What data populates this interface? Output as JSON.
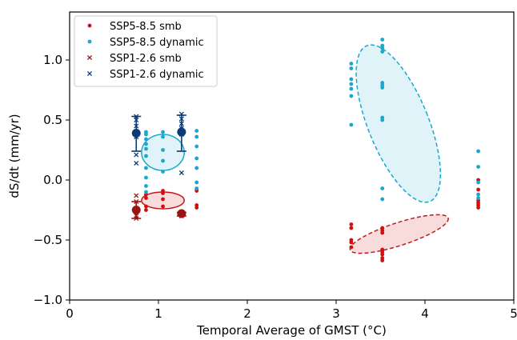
{
  "chart_data": {
    "type": "scatter",
    "xlabel": "Temporal Average of GMST (°C)",
    "ylabel": "dS/dt (mm/yr)",
    "xlim": [
      0,
      5
    ],
    "ylim": [
      -1.0,
      1.4
    ],
    "xticks": [
      "0",
      "1",
      "2",
      "3",
      "4",
      "5"
    ],
    "yticks": [
      "−1.0",
      "−0.5",
      "0.0",
      "0.5",
      "1.0"
    ],
    "xtick_values": [
      0,
      1,
      2,
      3,
      4,
      5
    ],
    "ytick_values": [
      -1.0,
      -0.5,
      0.0,
      0.5,
      1.0
    ],
    "legend_position": "top-left",
    "series": [
      {
        "name": "SSP5-8.5 smb",
        "marker": "dot",
        "color": "#d0100f",
        "points": [
          [
            0.86,
            -0.12
          ],
          [
            0.86,
            -0.15
          ],
          [
            0.86,
            -0.22
          ],
          [
            0.86,
            -0.25
          ],
          [
            1.05,
            -0.09
          ],
          [
            1.05,
            -0.11
          ],
          [
            1.05,
            -0.16
          ],
          [
            1.05,
            -0.22
          ],
          [
            1.43,
            -0.08
          ],
          [
            1.43,
            -0.09
          ],
          [
            1.43,
            -0.21
          ],
          [
            1.43,
            -0.23
          ],
          [
            3.17,
            -0.37
          ],
          [
            3.17,
            -0.4
          ],
          [
            3.17,
            -0.5
          ],
          [
            3.17,
            -0.52
          ],
          [
            3.17,
            -0.56
          ],
          [
            3.52,
            -0.4
          ],
          [
            3.52,
            -0.42
          ],
          [
            3.52,
            -0.44
          ],
          [
            3.52,
            -0.58
          ],
          [
            3.52,
            -0.6
          ],
          [
            3.52,
            -0.62
          ],
          [
            3.52,
            -0.65
          ],
          [
            3.52,
            -0.67
          ],
          [
            4.6,
            0.0
          ],
          [
            4.6,
            -0.08
          ],
          [
            4.6,
            -0.17
          ],
          [
            4.6,
            -0.19
          ],
          [
            4.6,
            -0.21
          ],
          [
            4.6,
            -0.23
          ]
        ]
      },
      {
        "name": "SSP5-8.5 dynamic",
        "marker": "dot",
        "color": "#1aa7cb",
        "points": [
          [
            0.86,
            0.4
          ],
          [
            0.86,
            0.38
          ],
          [
            0.86,
            0.34
          ],
          [
            0.86,
            0.3
          ],
          [
            0.86,
            0.26
          ],
          [
            0.86,
            0.2
          ],
          [
            0.86,
            0.1
          ],
          [
            0.86,
            0.02
          ],
          [
            0.86,
            -0.05
          ],
          [
            0.86,
            -0.1
          ],
          [
            1.05,
            0.4
          ],
          [
            1.05,
            0.36
          ],
          [
            1.05,
            0.25
          ],
          [
            1.05,
            0.16
          ],
          [
            1.05,
            0.07
          ],
          [
            1.43,
            0.41
          ],
          [
            1.43,
            0.36
          ],
          [
            1.43,
            0.28
          ],
          [
            1.43,
            0.18
          ],
          [
            1.43,
            0.1
          ],
          [
            1.43,
            -0.02
          ],
          [
            1.43,
            -0.07
          ],
          [
            3.17,
            0.97
          ],
          [
            3.17,
            0.93
          ],
          [
            3.17,
            0.84
          ],
          [
            3.17,
            0.8
          ],
          [
            3.17,
            0.76
          ],
          [
            3.17,
            0.7
          ],
          [
            3.17,
            0.46
          ],
          [
            3.52,
            1.17
          ],
          [
            3.52,
            1.12
          ],
          [
            3.52,
            1.1
          ],
          [
            3.52,
            1.07
          ],
          [
            3.52,
            0.81
          ],
          [
            3.52,
            0.79
          ],
          [
            3.52,
            0.77
          ],
          [
            3.52,
            0.52
          ],
          [
            3.52,
            0.5
          ],
          [
            3.52,
            -0.07
          ],
          [
            3.52,
            -0.16
          ],
          [
            4.6,
            0.24
          ],
          [
            4.6,
            0.11
          ],
          [
            4.6,
            -0.02
          ],
          [
            4.6,
            -0.12
          ],
          [
            4.6,
            -0.15
          ]
        ]
      },
      {
        "name": "SSP1-2.6 smb",
        "marker": "x",
        "color": "#9b1414",
        "points": [
          [
            0.75,
            -0.13
          ],
          [
            0.75,
            -0.18
          ],
          [
            0.75,
            -0.26
          ],
          [
            0.75,
            -0.3
          ],
          [
            0.75,
            -0.32
          ],
          [
            1.26,
            -0.27
          ],
          [
            1.26,
            -0.28
          ],
          [
            1.26,
            -0.29
          ],
          [
            1.26,
            -0.3
          ]
        ]
      },
      {
        "name": "SSP1-2.6 dynamic",
        "marker": "x",
        "color": "#0b3a74",
        "points": [
          [
            0.75,
            0.53
          ],
          [
            0.75,
            0.5
          ],
          [
            0.75,
            0.45
          ],
          [
            0.75,
            0.4
          ],
          [
            0.75,
            0.36
          ],
          [
            0.75,
            0.21
          ],
          [
            0.75,
            0.14
          ],
          [
            1.26,
            0.55
          ],
          [
            1.26,
            0.51
          ],
          [
            1.26,
            0.47
          ],
          [
            1.26,
            0.43
          ],
          [
            1.26,
            0.4
          ],
          [
            1.26,
            0.38
          ],
          [
            1.26,
            0.06
          ]
        ]
      }
    ],
    "means": [
      {
        "series": "SSP1-2.6 dynamic",
        "color": "#0b3a74",
        "x": 0.75,
        "y": 0.39,
        "err_low": 0.24,
        "err_high": 0.53
      },
      {
        "series": "SSP1-2.6 dynamic",
        "color": "#0b3a74",
        "x": 1.26,
        "y": 0.4,
        "err_low": 0.24,
        "err_high": 0.54
      },
      {
        "series": "SSP1-2.6 smb",
        "color": "#9b1414",
        "x": 0.75,
        "y": -0.25,
        "err_low": -0.32,
        "err_high": -0.18
      },
      {
        "series": "SSP1-2.6 smb",
        "color": "#9b1414",
        "x": 1.26,
        "y": -0.28,
        "err_low": -0.3,
        "err_high": -0.27
      }
    ],
    "ellipses": [
      {
        "series": "SSP5-8.5 dynamic",
        "color": "#1aa7cb",
        "fill": "#d9f1f8",
        "dashed": false,
        "cx": 1.05,
        "cy": 0.23,
        "rx_data": 0.24,
        "ry_data": 0.15,
        "angle_deg": 0
      },
      {
        "series": "SSP5-8.5 smb",
        "color": "#c0191b",
        "fill": "#f7d6d6",
        "dashed": false,
        "cx": 1.05,
        "cy": -0.17,
        "rx_data": 0.24,
        "ry_data": 0.07,
        "angle_deg": 0
      },
      {
        "series": "SSP5-8.5 dynamic",
        "color": "#1aa7cb",
        "fill": "#d9f1f8",
        "dashed": true,
        "cx": 3.7,
        "cy": 0.47,
        "rx_data": 0.34,
        "ry_data": 0.7,
        "angle_deg": -22
      },
      {
        "series": "SSP5-8.5 smb",
        "color": "#c0191b",
        "fill": "#f7d6d6",
        "dashed": true,
        "cx": 3.71,
        "cy": -0.45,
        "rx_data": 0.58,
        "ry_data": 0.095,
        "angle_deg": -18
      }
    ],
    "grid": false
  }
}
